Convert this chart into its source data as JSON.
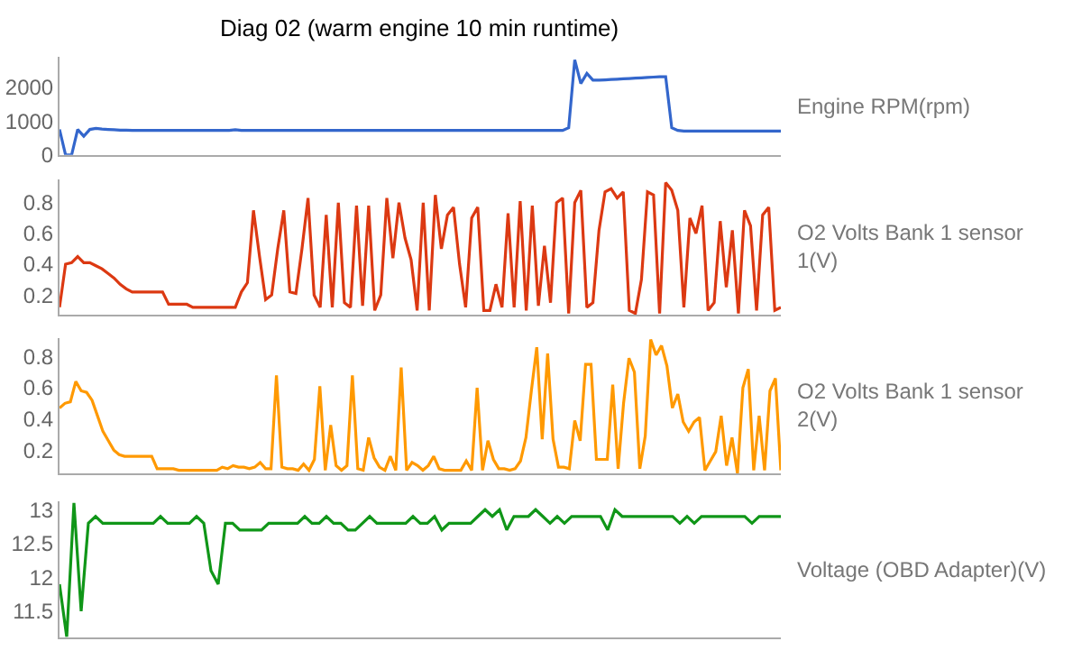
{
  "chart_data": [
    {
      "type": "line",
      "title": "Diag 02 (warm engine 10 min runtime)",
      "grid": false,
      "tick_labels": "y",
      "ylim": [
        0,
        2900
      ],
      "yticks": [
        0,
        1000,
        2000
      ],
      "categories": [
        null,
        null,
        null,
        null,
        null,
        null,
        null,
        null,
        null,
        null,
        null,
        null,
        null,
        null,
        null,
        null,
        null,
        null,
        null,
        null,
        null,
        null,
        null,
        null,
        null,
        null,
        null,
        null,
        null,
        null,
        null,
        null,
        null,
        null,
        null,
        null,
        null,
        null,
        null,
        null,
        null,
        null,
        null,
        null,
        null,
        null,
        null,
        null,
        null,
        null,
        null,
        null,
        null,
        null,
        null,
        null,
        null,
        null,
        null,
        null,
        null,
        null,
        null,
        null,
        null,
        null,
        null,
        null,
        null,
        null,
        null,
        null,
        null,
        null,
        null,
        null,
        null,
        null,
        null,
        null,
        null,
        null,
        null,
        null,
        null,
        null,
        null,
        null,
        null,
        null,
        null,
        null,
        null,
        null,
        null,
        null,
        null,
        null,
        null,
        null,
        null,
        null,
        null,
        null,
        null,
        null,
        null,
        null,
        null,
        null,
        null,
        null,
        null,
        null,
        null,
        null,
        null,
        null,
        null,
        null
      ],
      "series": [
        {
          "name": "Engine RPM(rpm)",
          "color": "#3366cc",
          "values": [
            750,
            0,
            0,
            750,
            550,
            750,
            780,
            760,
            750,
            740,
            730,
            730,
            720,
            720,
            720,
            720,
            720,
            720,
            720,
            720,
            720,
            720,
            720,
            720,
            720,
            720,
            720,
            720,
            720,
            740,
            720,
            720,
            720,
            720,
            720,
            720,
            720,
            720,
            720,
            720,
            720,
            720,
            720,
            720,
            720,
            720,
            720,
            720,
            720,
            720,
            720,
            720,
            720,
            720,
            720,
            720,
            720,
            720,
            720,
            720,
            720,
            720,
            720,
            720,
            720,
            720,
            720,
            720,
            720,
            720,
            720,
            720,
            720,
            720,
            720,
            720,
            720,
            720,
            720,
            720,
            720,
            720,
            720,
            720,
            800,
            2800,
            2100,
            2400,
            2200,
            2200,
            2210,
            2220,
            2230,
            2240,
            2250,
            2260,
            2270,
            2280,
            2290,
            2300,
            2300,
            800,
            720,
            700,
            700,
            700,
            700,
            700,
            700,
            700,
            700,
            700,
            700,
            700,
            700,
            700,
            700,
            700,
            700,
            700
          ]
        }
      ]
    },
    {
      "type": "line",
      "grid": false,
      "tick_labels": "y",
      "ylim": [
        0.07,
        0.95
      ],
      "yticks": [
        0.2,
        0.4,
        0.6,
        0.8
      ],
      "categories": [
        null,
        null,
        null,
        null,
        null,
        null,
        null,
        null,
        null,
        null,
        null,
        null,
        null,
        null,
        null,
        null,
        null,
        null,
        null,
        null,
        null,
        null,
        null,
        null,
        null,
        null,
        null,
        null,
        null,
        null,
        null,
        null,
        null,
        null,
        null,
        null,
        null,
        null,
        null,
        null,
        null,
        null,
        null,
        null,
        null,
        null,
        null,
        null,
        null,
        null,
        null,
        null,
        null,
        null,
        null,
        null,
        null,
        null,
        null,
        null,
        null,
        null,
        null,
        null,
        null,
        null,
        null,
        null,
        null,
        null,
        null,
        null,
        null,
        null,
        null,
        null,
        null,
        null,
        null,
        null,
        null,
        null,
        null,
        null,
        null,
        null,
        null,
        null,
        null,
        null,
        null,
        null,
        null,
        null,
        null,
        null,
        null,
        null,
        null,
        null,
        null,
        null,
        null,
        null,
        null,
        null,
        null,
        null,
        null,
        null,
        null,
        null,
        null,
        null,
        null,
        null,
        null,
        null,
        null,
        null
      ],
      "series": [
        {
          "name": "O2 Volts Bank 1 sensor 1(V)",
          "color": "#dc3912",
          "values": [
            0.12,
            0.4,
            0.41,
            0.45,
            0.41,
            0.41,
            0.39,
            0.37,
            0.34,
            0.31,
            0.27,
            0.24,
            0.22,
            0.22,
            0.22,
            0.22,
            0.22,
            0.22,
            0.14,
            0.14,
            0.14,
            0.14,
            0.12,
            0.12,
            0.12,
            0.12,
            0.12,
            0.12,
            0.12,
            0.12,
            0.22,
            0.28,
            0.75,
            0.45,
            0.17,
            0.2,
            0.5,
            0.75,
            0.22,
            0.21,
            0.5,
            0.83,
            0.2,
            0.12,
            0.72,
            0.12,
            0.8,
            0.15,
            0.12,
            0.78,
            0.13,
            0.78,
            0.1,
            0.2,
            0.83,
            0.44,
            0.8,
            0.57,
            0.43,
            0.1,
            0.8,
            0.1,
            0.85,
            0.5,
            0.72,
            0.77,
            0.4,
            0.12,
            0.7,
            0.77,
            0.1,
            0.1,
            0.27,
            0.12,
            0.73,
            0.12,
            0.81,
            0.1,
            0.78,
            0.13,
            0.52,
            0.15,
            0.8,
            0.83,
            0.08,
            0.8,
            0.88,
            0.12,
            0.15,
            0.62,
            0.87,
            0.89,
            0.83,
            0.87,
            0.1,
            0.08,
            0.3,
            0.87,
            0.85,
            0.08,
            0.93,
            0.88,
            0.75,
            0.12,
            0.7,
            0.6,
            0.78,
            0.1,
            0.15,
            0.68,
            0.25,
            0.62,
            0.08,
            0.75,
            0.65,
            0.1,
            0.72,
            0.77,
            0.1,
            0.12
          ]
        }
      ]
    },
    {
      "type": "line",
      "grid": false,
      "tick_labels": "y",
      "ylim": [
        0.05,
        0.92
      ],
      "yticks": [
        0.2,
        0.4,
        0.6,
        0.8
      ],
      "categories": [
        null,
        null,
        null,
        null,
        null,
        null,
        null,
        null,
        null,
        null,
        null,
        null,
        null,
        null,
        null,
        null,
        null,
        null,
        null,
        null,
        null,
        null,
        null,
        null,
        null,
        null,
        null,
        null,
        null,
        null,
        null,
        null,
        null,
        null,
        null,
        null,
        null,
        null,
        null,
        null,
        null,
        null,
        null,
        null,
        null,
        null,
        null,
        null,
        null,
        null,
        null,
        null,
        null,
        null,
        null,
        null,
        null,
        null,
        null,
        null,
        null,
        null,
        null,
        null,
        null,
        null,
        null,
        null,
        null,
        null,
        null,
        null,
        null,
        null,
        null,
        null,
        null,
        null,
        null,
        null,
        null,
        null,
        null,
        null,
        null,
        null,
        null,
        null,
        null,
        null,
        null,
        null,
        null,
        null,
        null,
        null,
        null,
        null,
        null,
        null,
        null,
        null,
        null,
        null,
        null,
        null,
        null,
        null,
        null,
        null,
        null,
        null,
        null,
        null,
        null,
        null,
        null,
        null,
        null,
        null,
        null,
        null,
        null,
        null,
        null,
        null,
        null,
        null,
        null,
        null,
        null,
        null,
        null,
        null
      ],
      "series": [
        {
          "name": "O2 Volts Bank 1 sensor 2(V)",
          "color": "#ff9900",
          "values": [
            0.47,
            0.5,
            0.51,
            0.64,
            0.58,
            0.57,
            0.52,
            0.42,
            0.32,
            0.26,
            0.2,
            0.17,
            0.16,
            0.16,
            0.16,
            0.16,
            0.16,
            0.16,
            0.08,
            0.08,
            0.08,
            0.08,
            0.07,
            0.07,
            0.07,
            0.07,
            0.07,
            0.07,
            0.07,
            0.07,
            0.09,
            0.08,
            0.1,
            0.09,
            0.09,
            0.08,
            0.09,
            0.12,
            0.08,
            0.08,
            0.68,
            0.09,
            0.08,
            0.08,
            0.07,
            0.11,
            0.07,
            0.14,
            0.61,
            0.07,
            0.36,
            0.1,
            0.07,
            0.1,
            0.68,
            0.08,
            0.07,
            0.28,
            0.15,
            0.09,
            0.07,
            0.16,
            0.07,
            0.73,
            0.07,
            0.12,
            0.1,
            0.07,
            0.1,
            0.16,
            0.08,
            0.07,
            0.07,
            0.07,
            0.07,
            0.13,
            0.07,
            0.6,
            0.07,
            0.26,
            0.14,
            0.08,
            0.08,
            0.07,
            0.08,
            0.13,
            0.28,
            0.58,
            0.86,
            0.27,
            0.82,
            0.27,
            0.09,
            0.09,
            0.08,
            0.39,
            0.26,
            0.75,
            0.75,
            0.14,
            0.14,
            0.14,
            0.62,
            0.08,
            0.5,
            0.79,
            0.7,
            0.08,
            0.29,
            0.91,
            0.81,
            0.87,
            0.74,
            0.47,
            0.56,
            0.38,
            0.32,
            0.38,
            0.41,
            0.07,
            0.13,
            0.19,
            0.42,
            0.1,
            0.28,
            0.05,
            0.6,
            0.72,
            0.07,
            0.42,
            0.07,
            0.58,
            0.66,
            0.07
          ]
        }
      ]
    },
    {
      "type": "line",
      "grid": false,
      "tick_labels": "y",
      "ylim": [
        11.12,
        13.12
      ],
      "yticks": [
        11.5,
        12,
        12.5,
        13
      ],
      "categories": [
        null,
        null,
        null,
        null,
        null,
        null,
        null,
        null,
        null,
        null,
        null,
        null,
        null,
        null,
        null,
        null,
        null,
        null,
        null,
        null,
        null,
        null,
        null,
        null,
        null,
        null,
        null,
        null,
        null,
        null,
        null,
        null,
        null,
        null,
        null,
        null,
        null,
        null,
        null,
        null,
        null,
        null,
        null,
        null,
        null,
        null,
        null,
        null,
        null,
        null,
        null,
        null,
        null,
        null,
        null,
        null,
        null,
        null,
        null,
        null,
        null,
        null,
        null,
        null,
        null,
        null,
        null,
        null,
        null,
        null,
        null,
        null,
        null,
        null,
        null,
        null,
        null,
        null,
        null,
        null,
        null,
        null,
        null,
        null,
        null,
        null,
        null,
        null,
        null,
        null,
        null,
        null,
        null,
        null,
        null,
        null,
        null,
        null,
        null,
        null,
        null
      ],
      "series": [
        {
          "name": "Voltage (OBD Adapter)(V)",
          "color": "#109618",
          "values": [
            11.9,
            11.12,
            13.1,
            11.5,
            12.8,
            12.9,
            12.8,
            12.8,
            12.8,
            12.8,
            12.8,
            12.8,
            12.8,
            12.8,
            12.9,
            12.8,
            12.8,
            12.8,
            12.8,
            12.9,
            12.8,
            12.1,
            11.9,
            12.8,
            12.8,
            12.7,
            12.7,
            12.7,
            12.7,
            12.8,
            12.8,
            12.8,
            12.8,
            12.8,
            12.9,
            12.8,
            12.8,
            12.9,
            12.8,
            12.8,
            12.7,
            12.7,
            12.8,
            12.9,
            12.8,
            12.8,
            12.8,
            12.8,
            12.8,
            12.9,
            12.8,
            12.8,
            12.9,
            12.7,
            12.8,
            12.8,
            12.8,
            12.8,
            12.9,
            13.0,
            12.9,
            13.0,
            12.7,
            12.9,
            12.9,
            12.9,
            13.0,
            12.9,
            12.8,
            12.9,
            12.8,
            12.9,
            12.9,
            12.9,
            12.9,
            12.9,
            12.7,
            13.0,
            12.9,
            12.9,
            12.9,
            12.9,
            12.9,
            12.9,
            12.9,
            12.9,
            12.8,
            12.9,
            12.8,
            12.9,
            12.9,
            12.9,
            12.9,
            12.9,
            12.9,
            12.9,
            12.8,
            12.9,
            12.9,
            12.9,
            12.9
          ]
        }
      ]
    }
  ]
}
